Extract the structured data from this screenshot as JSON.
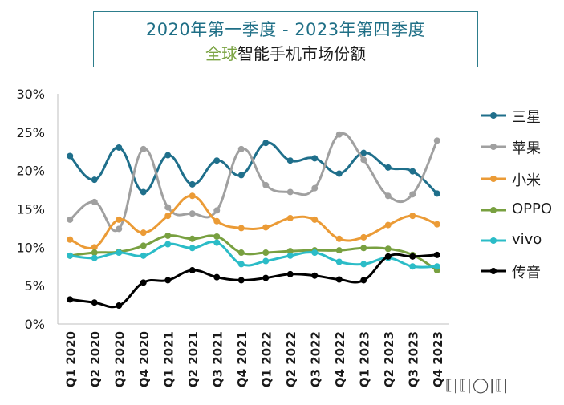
{
  "title": {
    "line1": "2020年第一季度  -  2023年第四季度",
    "line2_green": "全球",
    "line2_dark": "智能手机市场份额"
  },
  "watermark": "⟦|⟦|◯|⟦|",
  "chart_data": {
    "type": "line",
    "ylim": [
      0,
      30
    ],
    "yticks": [
      0,
      5,
      10,
      15,
      20,
      25,
      30
    ],
    "ytick_labels": [
      "0%",
      "5%",
      "10%",
      "15%",
      "20%",
      "25%",
      "30%"
    ],
    "categories": [
      "Q1 2020",
      "Q2 2020",
      "Q3 2020",
      "Q4 2020",
      "Q1 2021",
      "Q2 2021",
      "Q3 2021",
      "Q4 2021",
      "Q1 2022",
      "Q2 2022",
      "Q3 2022",
      "Q4 2022",
      "Q1 2023",
      "Q2 2023",
      "Q3 2023",
      "Q4 2023"
    ],
    "legend_position": "right",
    "series": [
      {
        "name": "三星",
        "color": "#1f6f8b",
        "values": [
          21.9,
          18.8,
          23.0,
          17.2,
          22.0,
          18.2,
          21.3,
          19.4,
          23.6,
          21.3,
          21.6,
          19.6,
          22.3,
          20.4,
          19.9,
          17.0
        ]
      },
      {
        "name": "苹果",
        "color": "#a0a0a0",
        "values": [
          13.6,
          15.9,
          12.4,
          22.8,
          15.2,
          14.4,
          14.8,
          22.8,
          18.1,
          17.2,
          17.7,
          24.7,
          21.4,
          16.7,
          16.9,
          23.9
        ]
      },
      {
        "name": "小米",
        "color": "#eb9b36",
        "values": [
          11.0,
          10.0,
          13.6,
          11.9,
          14.1,
          16.7,
          13.4,
          12.5,
          12.6,
          13.8,
          13.6,
          11.1,
          11.3,
          12.9,
          14.1,
          13.0
        ]
      },
      {
        "name": "OPPO",
        "color": "#78a040",
        "values": [
          8.9,
          9.3,
          9.4,
          10.2,
          11.5,
          11.1,
          11.4,
          9.3,
          9.3,
          9.5,
          9.6,
          9.6,
          9.9,
          9.8,
          9.0,
          7.0
        ]
      },
      {
        "name": "vivo",
        "color": "#2bbcc7",
        "values": [
          8.9,
          8.6,
          9.3,
          8.9,
          10.4,
          9.9,
          10.6,
          7.8,
          8.2,
          8.9,
          9.3,
          8.1,
          7.8,
          8.6,
          7.5,
          7.5
        ]
      },
      {
        "name": "传音",
        "color": "#000000",
        "values": [
          3.2,
          2.8,
          2.4,
          5.4,
          5.7,
          7.0,
          6.1,
          5.7,
          6.0,
          6.5,
          6.3,
          5.8,
          5.7,
          8.8,
          8.8,
          9.0
        ]
      }
    ]
  }
}
